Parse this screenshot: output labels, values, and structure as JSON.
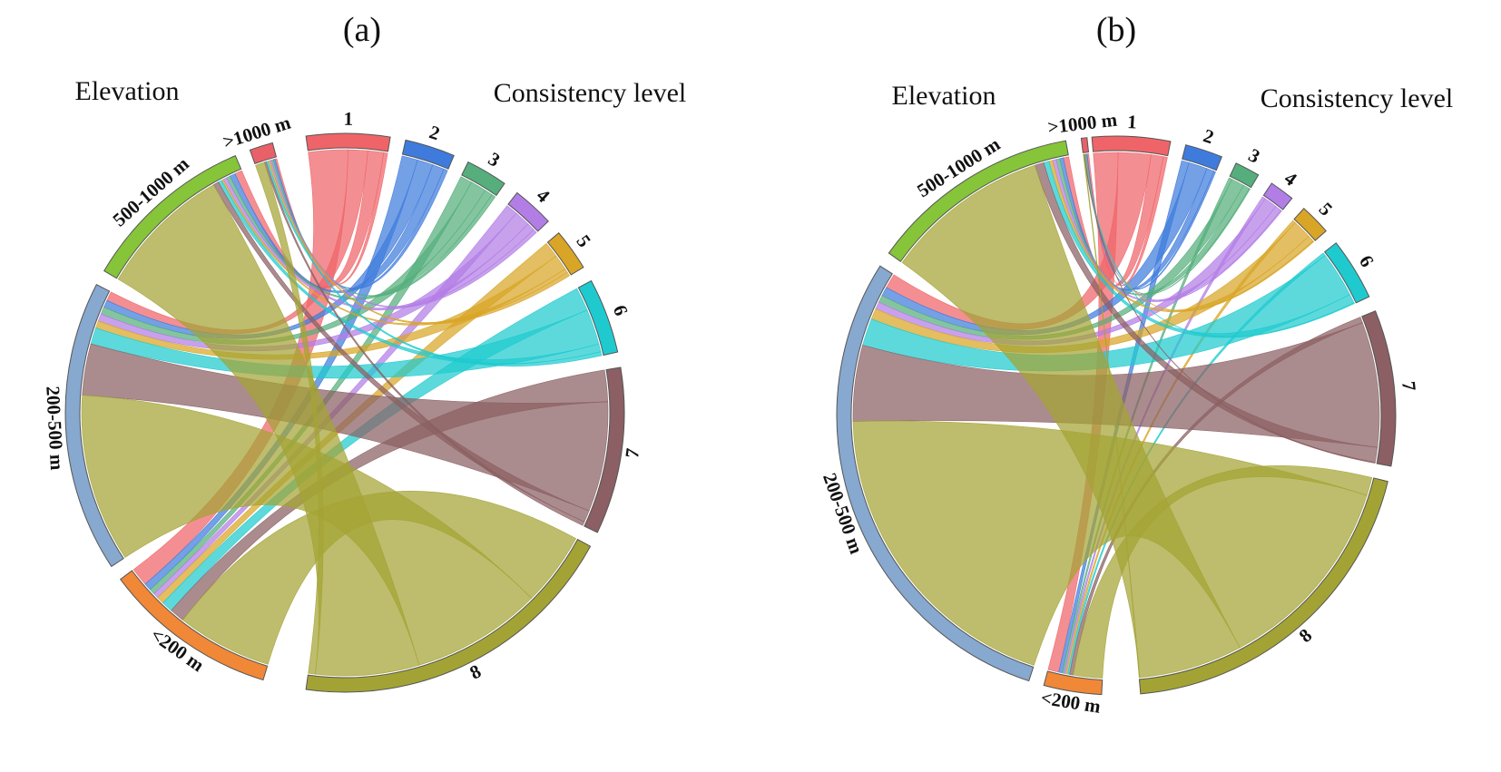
{
  "figure": {
    "colors": {
      "lvl1": "#EF6468",
      "lvl2": "#3F7BDC",
      "lvl3": "#55AE7C",
      "lvl4": "#B37DE6",
      "lvl5": "#D8A526",
      "lvl6": "#1FCACF",
      "lvl7": "#8B5F63",
      "lvl8": "#A3A335",
      "elev_gt1000": "#E86168",
      "elev_500_1000": "#86C43A",
      "elev_200_500": "#87A8CF",
      "elev_lt200": "#F08838"
    }
  },
  "chart_data": [
    {
      "type": "chord",
      "panel_label": "(a)",
      "left_group_title": "Elevation",
      "right_group_title": "Consistency level",
      "elevation_labels": [
        "<200 m",
        "200-500 m",
        "500-1000 m",
        ">1000 m"
      ],
      "level_labels": [
        "1",
        "2",
        "3",
        "4",
        "5",
        "6",
        "7",
        "8"
      ],
      "elevation_totals": [
        90,
        150,
        90,
        12
      ],
      "level_totals": [
        20,
        12,
        10,
        10,
        10,
        18,
        40,
        80
      ],
      "flows": [
        [
          10,
          4,
          3,
          3,
          4,
          6,
          8,
          52
        ],
        [
          5,
          4,
          4,
          4,
          4,
          9,
          28,
          92
        ],
        [
          4,
          3,
          2,
          2,
          1,
          2,
          3,
          73
        ],
        [
          1,
          1,
          1,
          1,
          1,
          1,
          1,
          5
        ]
      ]
    },
    {
      "type": "chord",
      "panel_label": "(b)",
      "left_group_title": "Elevation",
      "right_group_title": "Consistency level",
      "elevation_labels": [
        "<200 m",
        "200-500 m",
        "500-1000 m",
        ">1000 m"
      ],
      "level_labels": [
        "1",
        "2",
        "3",
        "4",
        "5",
        "6",
        "7",
        "8"
      ],
      "elevation_totals": [
        30,
        260,
        110,
        3
      ],
      "level_totals": [
        25,
        12,
        8,
        8,
        10,
        20,
        50,
        110
      ],
      "flows": [
        [
          6,
          2,
          1,
          1,
          1,
          1,
          2,
          16
        ],
        [
          8,
          5,
          4,
          4,
          6,
          15,
          42,
          176
        ],
        [
          3,
          2,
          2,
          2,
          2,
          3,
          5,
          91
        ],
        [
          1,
          0.5,
          0.3,
          0.3,
          0.3,
          0.3,
          0.3,
          0.5
        ]
      ]
    }
  ]
}
